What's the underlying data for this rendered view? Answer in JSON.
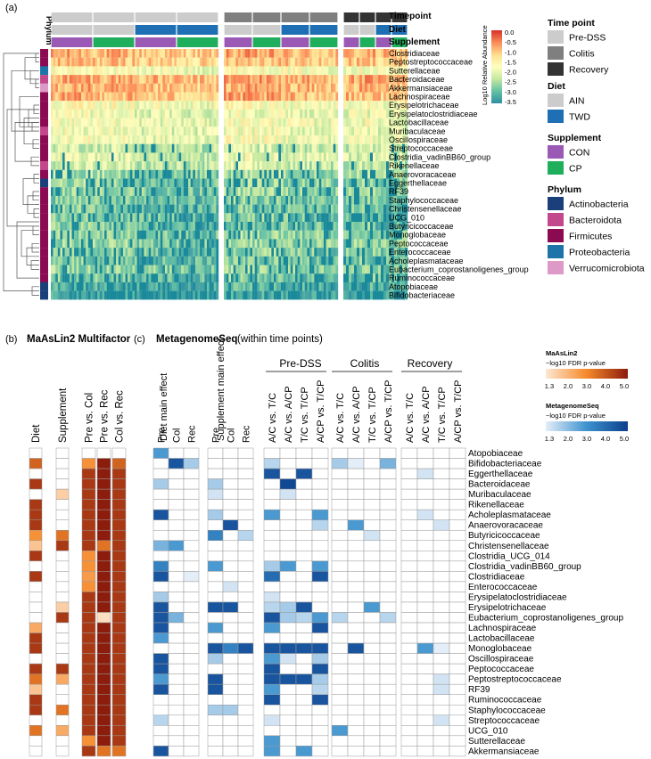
{
  "panel_a": {
    "label": "(a)",
    "phylum_header": "Phylum",
    "annotation_labels": [
      "Timepoint",
      "Diet",
      "Supplement"
    ],
    "colorbar_title": "Log10 Relative Abundance",
    "colorbar_ticks": [
      "0.0",
      "-0.5",
      "-1.0",
      "-1.5",
      "-2.0",
      "-2.5",
      "-3.0",
      "-3.5"
    ],
    "taxa": [
      "Clostridiaceae",
      "Peptostreptococcaceae",
      "Sutterellaceae",
      "Bacteroidaceae",
      "Akkermansiaceae",
      "Lachnospiraceae",
      "Erysipelotrichaceae",
      "Erysipelatoclostridiaceae",
      "Lactobacillaceae",
      "Muribaculaceae",
      "Oscillospiraceae",
      "Streptococcaceae",
      "Clostridia_vadinBB60_group",
      "Rikenellaceae",
      "Anaerovoracaceae",
      "Eggerthellaceae",
      "RF39",
      "Staphylococcaceae",
      "Christensenellaceae",
      "UCG_010",
      "Butyricicoccaceae",
      "Monoglobaceae",
      "Peptococcaceae",
      "Enterococcaceae",
      "Acholeplasmataceae",
      "Eubacterium_coprostanoligenes_group",
      "Ruminococcaceae",
      "Atopobiaceae",
      "Bifidobacteriaceae"
    ],
    "taxa_phylum": [
      "Firmicutes",
      "Firmicutes",
      "Proteobacteria",
      "Bacteroidota",
      "Verrucomicrobiota",
      "Firmicutes",
      "Firmicutes",
      "Firmicutes",
      "Firmicutes",
      "Bacteroidota",
      "Firmicutes",
      "Firmicutes",
      "Firmicutes",
      "Bacteroidota",
      "Firmicutes",
      "Actinobacteria",
      "Firmicutes",
      "Firmicutes",
      "Firmicutes",
      "Firmicutes",
      "Firmicutes",
      "Firmicutes",
      "Firmicutes",
      "Firmicutes",
      "Firmicutes",
      "Firmicutes",
      "Firmicutes",
      "Actinobacteria",
      "Actinobacteria"
    ],
    "mean_abundance": [
      -1.0,
      -1.1,
      -1.8,
      -0.9,
      -1.0,
      -1.0,
      -1.8,
      -2.0,
      -1.9,
      -2.0,
      -1.9,
      -2.3,
      -2.1,
      -2.3,
      -2.6,
      -2.7,
      -2.7,
      -2.9,
      -2.9,
      -2.9,
      -2.9,
      -2.7,
      -2.7,
      -2.8,
      -2.9,
      -2.7,
      -2.9,
      -3.2,
      -3.4
    ]
  },
  "legend": {
    "timepoint_title": "Time point",
    "timepoint_items": [
      {
        "label": "Pre-DSS",
        "color": "#cccccc"
      },
      {
        "label": "Colitis",
        "color": "#7f7f7f"
      },
      {
        "label": "Recovery",
        "color": "#333333"
      }
    ],
    "diet_title": "Diet",
    "diet_items": [
      {
        "label": "AIN",
        "color": "#cccccc"
      },
      {
        "label": "TWD",
        "color": "#1f6fb4"
      }
    ],
    "supplement_title": "Supplement",
    "supplement_items": [
      {
        "label": "CON",
        "color": "#9b59b6"
      },
      {
        "label": "CP",
        "color": "#1fae5c"
      }
    ],
    "phylum_title": "Phylum",
    "phylum_items": [
      {
        "label": "Actinobacteria",
        "color": "#1b3f7a"
      },
      {
        "label": "Bacteroidota",
        "color": "#c2478b"
      },
      {
        "label": "Firmicutes",
        "color": "#8b0a52"
      },
      {
        "label": "Proteobacteria",
        "color": "#1d74a8"
      },
      {
        "label": "Verrucomicrobiota",
        "color": "#de9ac6"
      }
    ]
  },
  "panel_b": {
    "label": "(b)",
    "title": "MaAsLin2 Multifactor",
    "columns": [
      "Diet",
      "Supplement",
      "Pre vs. Col",
      "Pre vs. Rec",
      "Col vs. Rec"
    ]
  },
  "panel_c": {
    "label": "(c)",
    "title": "MetagenomeSeq",
    "subtitle": "(within time points)",
    "group_diet": "Diet main effect",
    "group_supplement": "Supplement main effect",
    "group_pre": "Pre-DSS",
    "group_colitis": "Colitis",
    "group_recovery": "Recovery",
    "effect_cols": [
      "Pre",
      "Col",
      "Rec"
    ],
    "contrast_cols": [
      "A/C vs. T/C",
      "A/C vs. A/CP",
      "T/C vs. T/CP",
      "A/CP vs. T/CP"
    ],
    "taxa": [
      "Atopobiaceae",
      "Bifidobacteriaceae",
      "Eggerthellaceae",
      "Bacteroidaceae",
      "Muribaculaceae",
      "Rikenellaceae",
      "Acholeplasmataceae",
      "Anaerovoracaceae",
      "Butyricicoccaceae",
      "Christensenellaceae",
      "Clostridia_UCG_014",
      "Clostridia_vadinBB60_group",
      "Clostridiaceae",
      "Enterococcaceae",
      "Erysipelatoclostridiaceae",
      "Erysipelotrichaceae",
      "Eubacterium_coprostanoligenes_group",
      "Lachnospiraceae",
      "Lactobacillaceae",
      "Monoglobaceae",
      "Oscillospiraceae",
      "Peptococcaceae",
      "Peptostreptococcaceae",
      "RF39",
      "Ruminococcaceae",
      "Staphylococcaceae",
      "Streptococcaceae",
      "UCG_010",
      "Sutterellaceae",
      "Akkermansiaceae"
    ]
  },
  "maaslin_scale": {
    "title": "MaAsLin2",
    "subtitle": "−log10 FDR p-value",
    "ticks": [
      "1.3",
      "2.0",
      "3.0",
      "4.0",
      "5.0"
    ]
  },
  "mgs_scale": {
    "title": "MetagenomeSeq",
    "subtitle": "−log10 FDR p-value",
    "ticks": [
      "1.3",
      "2.0",
      "3.0",
      "4.0",
      "5.0"
    ]
  },
  "chart_data": [
    {
      "type": "heatmap",
      "title": "Log10 relative abundance of bacterial families (panel a)",
      "value_range": [
        -3.5,
        0.0
      ],
      "rows": "panel_a.taxa",
      "row_mean_log10_abundance": [
        -1.0,
        -1.1,
        -1.8,
        -0.9,
        -1.0,
        -1.0,
        -1.8,
        -2.0,
        -1.9,
        -2.0,
        -1.9,
        -2.3,
        -2.1,
        -2.3,
        -2.6,
        -2.7,
        -2.7,
        -2.9,
        -2.9,
        -2.9,
        -2.9,
        -2.7,
        -2.7,
        -2.8,
        -2.9,
        -2.7,
        -2.9,
        -3.2,
        -3.4
      ],
      "column_groups": [
        {
          "timepoint": "Pre-DSS",
          "diet": "AIN",
          "supplement": "CON"
        },
        {
          "timepoint": "Pre-DSS",
          "diet": "AIN",
          "supplement": "CP"
        },
        {
          "timepoint": "Pre-DSS",
          "diet": "TWD",
          "supplement": "CON"
        },
        {
          "timepoint": "Pre-DSS",
          "diet": "TWD",
          "supplement": "CP"
        },
        {
          "timepoint": "Colitis",
          "diet": "AIN",
          "supplement": "CON"
        },
        {
          "timepoint": "Colitis",
          "diet": "AIN",
          "supplement": "CP"
        },
        {
          "timepoint": "Colitis",
          "diet": "TWD",
          "supplement": "CON"
        },
        {
          "timepoint": "Colitis",
          "diet": "TWD",
          "supplement": "CP"
        },
        {
          "timepoint": "Recovery",
          "diet": "AIN",
          "supplement": "CON"
        },
        {
          "timepoint": "Recovery",
          "diet": "AIN",
          "supplement": "CP"
        },
        {
          "timepoint": "Recovery",
          "diet": "TWD",
          "supplement": "CON"
        },
        {
          "timepoint": "Recovery",
          "diet": "TWD",
          "supplement": "CP"
        }
      ]
    },
    {
      "type": "heatmap",
      "title": "MaAsLin2 Multifactor",
      "columns": [
        "Diet",
        "Supplement",
        "Pre vs. Col",
        "Pre vs. Rec",
        "Col vs. Rec"
      ],
      "value_range": [
        1.3,
        5.0
      ],
      "values": [
        [
          0,
          0,
          0,
          0,
          0
        ],
        [
          3.8,
          0,
          3.0,
          5.0,
          3.8
        ],
        [
          0,
          0,
          4.5,
          5.0,
          4.5
        ],
        [
          4.5,
          0,
          4.5,
          5.0,
          4.5
        ],
        [
          0,
          1.8,
          4.5,
          5.0,
          4.5
        ],
        [
          4.5,
          0,
          4.5,
          5.0,
          4.5
        ],
        [
          4.5,
          0,
          4.5,
          5.0,
          4.5
        ],
        [
          4.5,
          0,
          4.5,
          5.0,
          4.5
        ],
        [
          3.0,
          3.5,
          4.5,
          5.0,
          4.5
        ],
        [
          2.0,
          4.5,
          4.5,
          3.5,
          4.5
        ],
        [
          4.5,
          0,
          3.0,
          5.0,
          4.5
        ],
        [
          0,
          0,
          3.0,
          5.0,
          4.5
        ],
        [
          4.5,
          0,
          2.8,
          5.0,
          4.5
        ],
        [
          0,
          0,
          3.0,
          5.0,
          4.5
        ],
        [
          0,
          0,
          4.5,
          5.0,
          4.5
        ],
        [
          0,
          1.8,
          4.5,
          5.0,
          4.5
        ],
        [
          0,
          4.5,
          4.5,
          1.5,
          4.5
        ],
        [
          2.5,
          0,
          4.5,
          5.0,
          4.5
        ],
        [
          4.5,
          0,
          4.5,
          5.0,
          4.5
        ],
        [
          4.5,
          0,
          4.5,
          5.0,
          4.5
        ],
        [
          0,
          0,
          4.5,
          5.0,
          4.5
        ],
        [
          4.5,
          4.5,
          4.5,
          5.0,
          4.5
        ],
        [
          3.5,
          2.5,
          4.5,
          5.0,
          4.5
        ],
        [
          2.0,
          0,
          4.5,
          5.0,
          4.5
        ],
        [
          4.5,
          0,
          4.5,
          5.0,
          4.5
        ],
        [
          4.5,
          3.5,
          4.5,
          5.0,
          4.5
        ],
        [
          0,
          0,
          4.5,
          5.0,
          4.5
        ],
        [
          3.5,
          2.5,
          4.5,
          5.0,
          4.5
        ],
        [
          0,
          0,
          3.0,
          5.0,
          4.5
        ],
        [
          0,
          0,
          4.5,
          3.5,
          3.5
        ]
      ]
    },
    {
      "type": "heatmap",
      "title": "MetagenomeSeq (within time points)",
      "columns": [
        "Diet Pre",
        "Diet Col",
        "Diet Rec",
        "Supp Pre",
        "Supp Col",
        "Supp Rec",
        "Pre A/C vs. T/C",
        "Pre A/C vs. A/CP",
        "Pre T/C vs. T/CP",
        "Pre A/CP vs. T/CP",
        "Col A/C vs. T/C",
        "Col A/C vs. A/CP",
        "Col T/C vs. T/CP",
        "Col A/CP vs. T/CP",
        "Rec A/C vs. T/C",
        "Rec A/C vs. A/CP",
        "Rec T/C vs. T/CP",
        "Rec A/CP vs. T/CP"
      ],
      "value_range": [
        1.3,
        5.0
      ],
      "values": [
        [
          3.0,
          0,
          0,
          0,
          0,
          0,
          0,
          0,
          0,
          0,
          0,
          0,
          0,
          0,
          0,
          0,
          0,
          0
        ],
        [
          0,
          4.5,
          2.0,
          0,
          0,
          0,
          1.8,
          0,
          0,
          0,
          2.0,
          1.3,
          0,
          2.5,
          0,
          0,
          0,
          0
        ],
        [
          0,
          0,
          0,
          0,
          0,
          0,
          4.5,
          0,
          4.5,
          0,
          0,
          0,
          0,
          0,
          0,
          1.5,
          0,
          0
        ],
        [
          2.0,
          0,
          0,
          2.0,
          0,
          0,
          0,
          4.8,
          0,
          0,
          0,
          0,
          0,
          0,
          0,
          0,
          0,
          0
        ],
        [
          0,
          0,
          0,
          1.5,
          0,
          0,
          0,
          1.5,
          0,
          0,
          0,
          0,
          0,
          0,
          0,
          0,
          0,
          0
        ],
        [
          0,
          0,
          0,
          0,
          0,
          0,
          0,
          0,
          0,
          0,
          0,
          0,
          0,
          0,
          0,
          0,
          0,
          0
        ],
        [
          4.5,
          0,
          0,
          2.0,
          0,
          0,
          3.0,
          0,
          0,
          3.0,
          0,
          0,
          0,
          0,
          0,
          1.5,
          0,
          0
        ],
        [
          0,
          0,
          0,
          0,
          4.5,
          0,
          0,
          0,
          0,
          1.8,
          0,
          3.0,
          0,
          0,
          0,
          0,
          1.5,
          0
        ],
        [
          0,
          0,
          0,
          3.5,
          0,
          1.8,
          0,
          0,
          0,
          0,
          0,
          0,
          1.5,
          0,
          0,
          0,
          0,
          0
        ],
        [
          2.5,
          3.0,
          0,
          0,
          0,
          0,
          0,
          0,
          0,
          0,
          0,
          0,
          0,
          0,
          0,
          0,
          0,
          0
        ],
        [
          0,
          0,
          0,
          0,
          0,
          0,
          0,
          0,
          0,
          0,
          0,
          0,
          0,
          0,
          0,
          0,
          0,
          0
        ],
        [
          3.5,
          0,
          0,
          3.0,
          0,
          0,
          2.0,
          3.0,
          0,
          3.0,
          0,
          0,
          0,
          0,
          0,
          0,
          0,
          0
        ],
        [
          4.5,
          0,
          1.3,
          0,
          0,
          0,
          4.0,
          0,
          0,
          4.5,
          0,
          0,
          0,
          0,
          0,
          0,
          0,
          0
        ],
        [
          0,
          0,
          0,
          0,
          1.5,
          0,
          0,
          0,
          0,
          0,
          0,
          0,
          0,
          0,
          0,
          0,
          0,
          0
        ],
        [
          2.0,
          0,
          0,
          0,
          0,
          0,
          1.5,
          0,
          0,
          0,
          0,
          0,
          0,
          0,
          0,
          0,
          0,
          0
        ],
        [
          4.5,
          0,
          0,
          4.5,
          4.5,
          0,
          1.8,
          2.0,
          4.5,
          0,
          0,
          0,
          3.0,
          0,
          0,
          0,
          0,
          0
        ],
        [
          4.5,
          2.5,
          0,
          0,
          0,
          0,
          4.5,
          2.0,
          1.8,
          3.0,
          1.8,
          0,
          0,
          1.8,
          0,
          0,
          0,
          0
        ],
        [
          4.5,
          0,
          0,
          3.0,
          0,
          0,
          3.0,
          0,
          0,
          4.5,
          0,
          0,
          0,
          0,
          0,
          0,
          0,
          0
        ],
        [
          3.0,
          0,
          0,
          0,
          0,
          0,
          0,
          0,
          0,
          0,
          0,
          0,
          0,
          0,
          0,
          0,
          0,
          0
        ],
        [
          0,
          0,
          0,
          4.5,
          3.5,
          4.5,
          4.5,
          4.5,
          4.5,
          4.5,
          0,
          4.5,
          0,
          0,
          0,
          3.0,
          1.3,
          0
        ],
        [
          4.5,
          0,
          0,
          2.0,
          0,
          0,
          3.0,
          1.5,
          0,
          2.0,
          0,
          0,
          0,
          0,
          0,
          0,
          0,
          0
        ],
        [
          4.5,
          0,
          0,
          0,
          0,
          0,
          4.5,
          0,
          0,
          4.5,
          0,
          0,
          0,
          0,
          0,
          0,
          0,
          0
        ],
        [
          3.0,
          0,
          0,
          4.5,
          0,
          0,
          4.5,
          4.5,
          4.5,
          2.0,
          0,
          0,
          0,
          0,
          0,
          0,
          1.5,
          0
        ],
        [
          4.5,
          0,
          0,
          4.5,
          0,
          0,
          3.0,
          0,
          0,
          1.8,
          0,
          0,
          0,
          0,
          0,
          0,
          1.5,
          0
        ],
        [
          0,
          0,
          0,
          0,
          0,
          0,
          4.5,
          0,
          0,
          4.5,
          0,
          0,
          0,
          0,
          0,
          0,
          0,
          0
        ],
        [
          0,
          0,
          0,
          2.0,
          2.0,
          0,
          0,
          0,
          0,
          0,
          0,
          0,
          0,
          0,
          0,
          0,
          0,
          0
        ],
        [
          1.8,
          0,
          0,
          0,
          0,
          0,
          1.5,
          0,
          0,
          0,
          0,
          0,
          0,
          0,
          0,
          0,
          1.5,
          0
        ],
        [
          0,
          0,
          0,
          0,
          0,
          0,
          0,
          0,
          0,
          0,
          3.0,
          0,
          0,
          0,
          0,
          0,
          0,
          0
        ],
        [
          0,
          0,
          0,
          0,
          0,
          0,
          3.0,
          0,
          0,
          0,
          0,
          0,
          0,
          0,
          0,
          0,
          0,
          0
        ],
        [
          4.5,
          0,
          0,
          0,
          0,
          0,
          3.0,
          0,
          3.0,
          0,
          0,
          0,
          0,
          0,
          0,
          0,
          0,
          0
        ]
      ]
    }
  ]
}
